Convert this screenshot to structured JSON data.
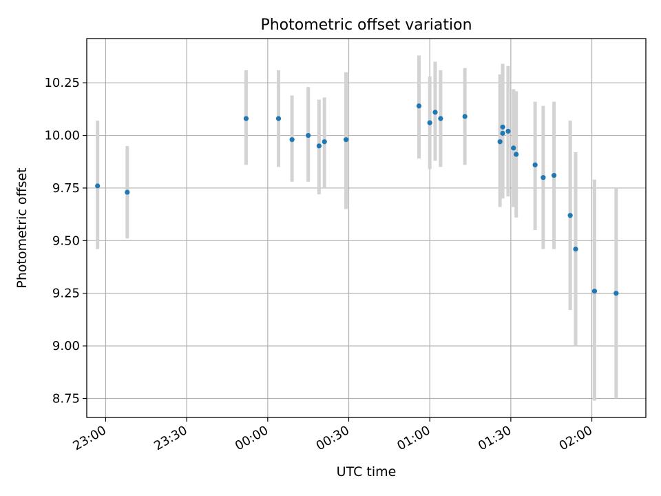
{
  "chart_data": {
    "type": "scatter",
    "title": "Photometric offset variation",
    "xlabel": "UTC time",
    "ylabel": "Photometric offset",
    "x_tick_labels": [
      "23:00",
      "23:30",
      "00:00",
      "00:30",
      "01:00",
      "01:30",
      "02:00"
    ],
    "y_tick_labels": [
      "8.75",
      "9.00",
      "9.25",
      "9.50",
      "9.75",
      "10.00",
      "10.25"
    ],
    "xlim": [
      "22:53",
      "02:20"
    ],
    "ylim": [
      8.66,
      10.46
    ],
    "grid": true,
    "colors": {
      "point": "#1f77b4",
      "errorbar": "#d3d3d3",
      "grid": "#b0b0b0"
    },
    "points": [
      {
        "t": "22:57",
        "y": 9.76,
        "low": 9.46,
        "high": 10.07
      },
      {
        "t": "23:08",
        "y": 9.73,
        "low": 9.51,
        "high": 9.95
      },
      {
        "t": "23:52",
        "y": 10.08,
        "low": 9.86,
        "high": 10.31
      },
      {
        "t": "00:04",
        "y": 10.08,
        "low": 9.85,
        "high": 10.31
      },
      {
        "t": "00:09",
        "y": 9.98,
        "low": 9.78,
        "high": 10.19
      },
      {
        "t": "00:15",
        "y": 10.0,
        "low": 9.78,
        "high": 10.23
      },
      {
        "t": "00:19",
        "y": 9.95,
        "low": 9.72,
        "high": 10.17
      },
      {
        "t": "00:21",
        "y": 9.97,
        "low": 9.75,
        "high": 10.18
      },
      {
        "t": "00:29",
        "y": 9.98,
        "low": 9.65,
        "high": 10.3
      },
      {
        "t": "00:56",
        "y": 10.14,
        "low": 9.89,
        "high": 10.38
      },
      {
        "t": "01:00",
        "y": 10.06,
        "low": 9.84,
        "high": 10.28
      },
      {
        "t": "01:02",
        "y": 10.11,
        "low": 9.88,
        "high": 10.35
      },
      {
        "t": "01:04",
        "y": 10.08,
        "low": 9.85,
        "high": 10.31
      },
      {
        "t": "01:13",
        "y": 10.09,
        "low": 9.86,
        "high": 10.32
      },
      {
        "t": "01:26",
        "y": 9.97,
        "low": 9.66,
        "high": 10.29
      },
      {
        "t": "01:27",
        "y": 10.04,
        "low": 9.74,
        "high": 10.34
      },
      {
        "t": "01:27",
        "y": 10.01,
        "low": 9.7,
        "high": 10.32
      },
      {
        "t": "01:29",
        "y": 10.02,
        "low": 9.71,
        "high": 10.33
      },
      {
        "t": "01:31",
        "y": 9.94,
        "low": 9.66,
        "high": 10.22
      },
      {
        "t": "01:32",
        "y": 9.91,
        "low": 9.61,
        "high": 10.21
      },
      {
        "t": "01:39",
        "y": 9.86,
        "low": 9.55,
        "high": 10.16
      },
      {
        "t": "01:42",
        "y": 9.8,
        "low": 9.46,
        "high": 10.14
      },
      {
        "t": "01:46",
        "y": 9.81,
        "low": 9.46,
        "high": 10.16
      },
      {
        "t": "01:52",
        "y": 9.62,
        "low": 9.17,
        "high": 10.07
      },
      {
        "t": "01:54",
        "y": 9.46,
        "low": 9.0,
        "high": 9.92
      },
      {
        "t": "02:01",
        "y": 9.26,
        "low": 8.74,
        "high": 9.79
      },
      {
        "t": "02:09",
        "y": 9.25,
        "low": 8.75,
        "high": 9.75
      }
    ]
  }
}
